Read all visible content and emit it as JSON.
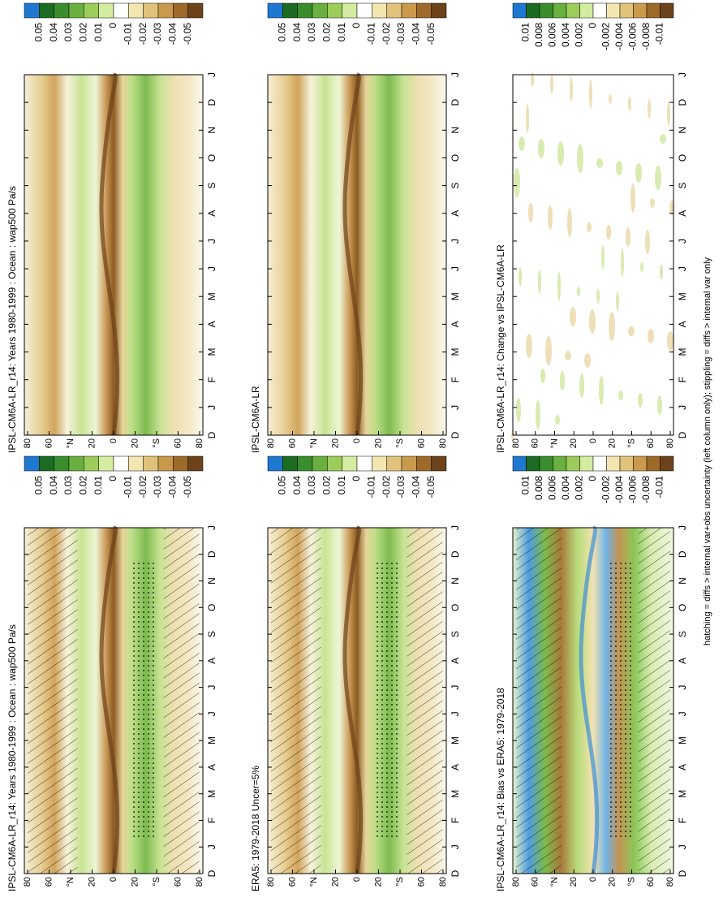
{
  "months": [
    "D",
    "J",
    "F",
    "M",
    "A",
    "M",
    "J",
    "J",
    "A",
    "S",
    "O",
    "N",
    "D",
    "J"
  ],
  "latitudes": [
    "80",
    "60",
    "°N",
    "20",
    "0",
    "20",
    "°S",
    "60",
    "80"
  ],
  "panels": [
    {
      "title": "IPSL-CM6A-LR_r14: Years 1980-1999 : Ocean : wap500 Pa/s",
      "style": "mean",
      "hatched": true,
      "colorbar_labels": [
        "0.05",
        "0.04",
        "0.03",
        "0.02",
        "0.01",
        "0",
        "-0.01",
        "-0.02",
        "-0.03",
        "-0.04",
        "-0.05"
      ]
    },
    {
      "title": "IPSL-CM6A-LR_r14: Years 1980-1999 : Ocean : wap500 Pa/s",
      "style": "mean",
      "hatched": false,
      "colorbar_labels": [
        "0.05",
        "0.04",
        "0.03",
        "0.02",
        "0.01",
        "0",
        "-0.01",
        "-0.02",
        "-0.03",
        "-0.04",
        "-0.05"
      ]
    },
    {
      "title": "ERA5: 1979-2018 Uncer=5%",
      "style": "mean",
      "hatched": true,
      "colorbar_labels": [
        "0.05",
        "0.04",
        "0.03",
        "0.02",
        "0.01",
        "0",
        "-0.01",
        "-0.02",
        "-0.03",
        "-0.04",
        "-0.05"
      ]
    },
    {
      "title": "IPSL-CM6A-LR",
      "style": "mean",
      "hatched": false,
      "colorbar_labels": [
        "0.05",
        "0.04",
        "0.03",
        "0.02",
        "0.01",
        "0",
        "-0.01",
        "-0.02",
        "-0.03",
        "-0.04",
        "-0.05"
      ]
    },
    {
      "title": "IPSL-CM6A-LR_r14: Bias vs ERA5: 1979-2018",
      "style": "bias",
      "hatched": true,
      "colorbar_labels": [
        "0.01",
        "0.008",
        "0.006",
        "0.004",
        "0.002",
        "0",
        "-0.002",
        "-0.004",
        "-0.006",
        "-0.008",
        "-0.01"
      ]
    },
    {
      "title": "IPSL-CM6A-LR_r14: Change vs IPSL-CM6A-LR",
      "style": "change",
      "hatched": false,
      "colorbar_labels": [
        "0.01",
        "0.008",
        "0.006",
        "0.004",
        "0.002",
        "0",
        "-0.002",
        "-0.004",
        "-0.006",
        "-0.008",
        "-0.01"
      ]
    }
  ],
  "footnote": "hatching = diffs > internal var+obs uncertainty (left column only); stippling = diffs > internal var only"
}
